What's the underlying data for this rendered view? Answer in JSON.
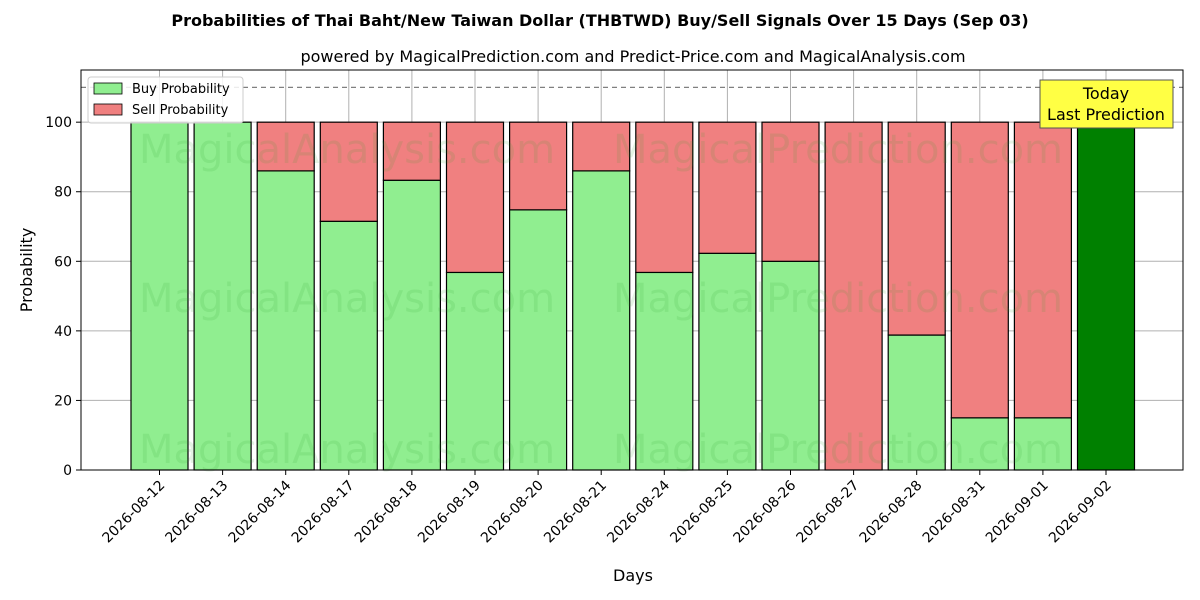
{
  "chart_data": {
    "type": "bar",
    "stacked": true,
    "title": "Probabilities of Thai Baht/New Taiwan Dollar (THBTWD) Buy/Sell Signals Over 15 Days (Sep 03)",
    "subtitle": "powered by MagicalPrediction.com and Predict-Price.com and MagicalAnalysis.com",
    "xlabel": "Days",
    "ylabel": "Probability",
    "ylim": [
      0,
      115
    ],
    "yticks": [
      0,
      20,
      40,
      60,
      80,
      100
    ],
    "reference_line": 110,
    "grid": true,
    "legend_position": "top-left",
    "categories": [
      "2026-08-12",
      "2026-08-13",
      "2026-08-14",
      "2026-08-17",
      "2026-08-18",
      "2026-08-19",
      "2026-08-20",
      "2026-08-21",
      "2026-08-24",
      "2026-08-25",
      "2026-08-26",
      "2026-08-27",
      "2026-08-28",
      "2026-08-31",
      "2026-09-01",
      "2026-09-02"
    ],
    "series": [
      {
        "name": "Buy Probability",
        "color": "#90ee90",
        "values": [
          100,
          100,
          86,
          71.5,
          83.3,
          56.8,
          74.8,
          86,
          56.8,
          62.3,
          60,
          0,
          38.8,
          15,
          15,
          100
        ]
      },
      {
        "name": "Sell Probability",
        "color": "#f08080",
        "values": [
          0,
          0,
          14,
          28.5,
          16.7,
          43.2,
          25.2,
          14,
          43.2,
          37.7,
          40,
          100,
          61.2,
          85,
          85,
          0
        ]
      }
    ],
    "highlight": {
      "index": 15,
      "color": "#008000"
    },
    "annotation": {
      "lines": [
        "Today",
        "Last Prediction"
      ],
      "background": "#ffff44"
    },
    "watermarks": [
      "MagicalAnalysis.com",
      "MagicalPrediction.com"
    ]
  }
}
